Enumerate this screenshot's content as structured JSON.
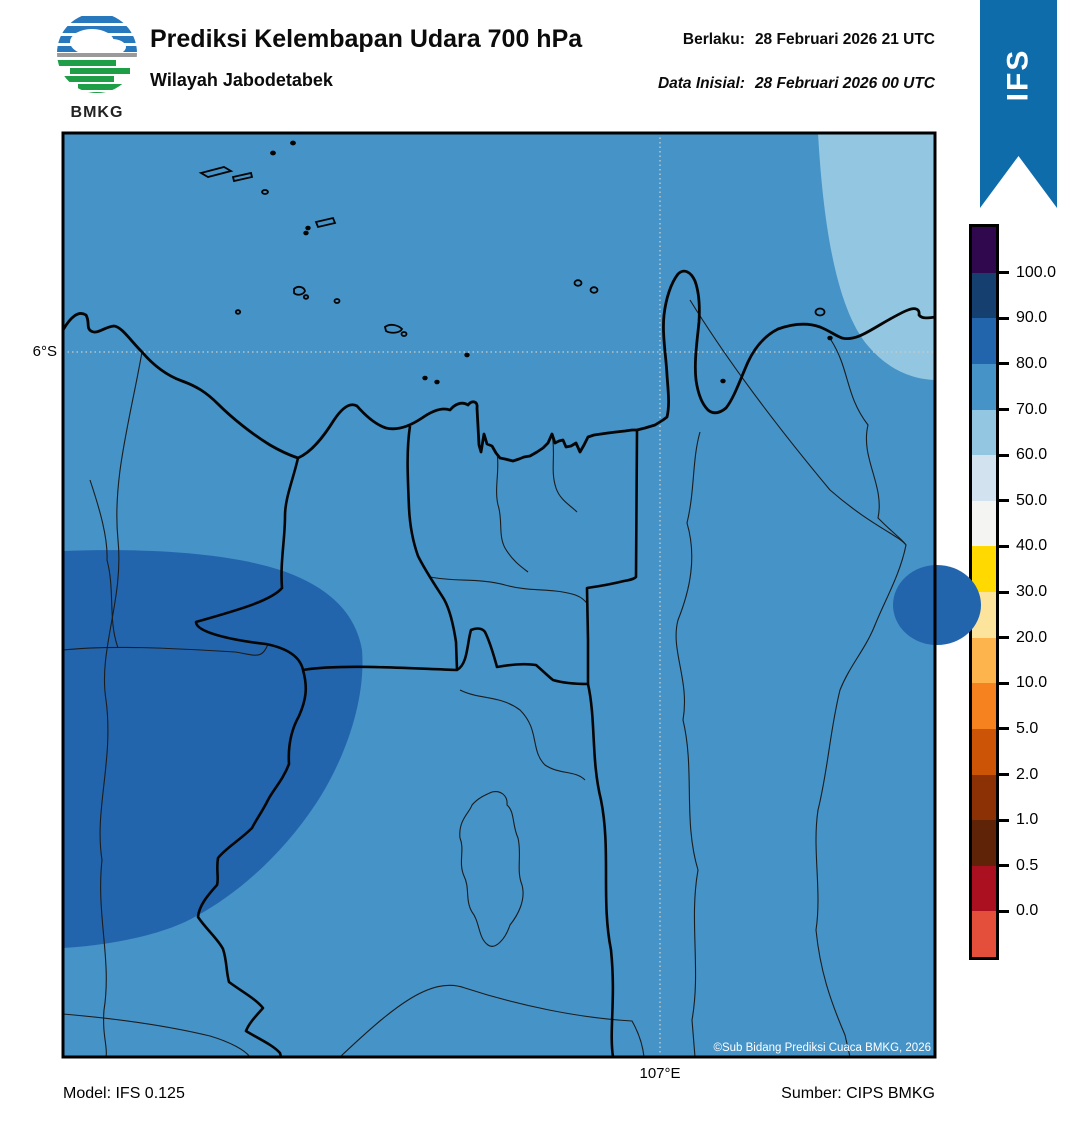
{
  "header": {
    "logo_text": "BMKG",
    "title": "Prediksi Kelembapan Udara 700 hPa",
    "subtitle": "Wilayah Jabodetabek",
    "valid_label": "Berlaku:",
    "valid_value": "28 Februari 2026 21 UTC",
    "init_label": "Data Inisial:",
    "init_value": "28 Februari 2026 00 UTC"
  },
  "ribbon": {
    "label": "IFS",
    "color": "#0f6cab"
  },
  "colorbar": {
    "labels_top_to_bottom": [
      "100.0",
      "90.0",
      "80.0",
      "70.0",
      "60.0",
      "50.0",
      "40.0",
      "30.0",
      "20.0",
      "10.0",
      "5.0",
      "2.0",
      "1.0",
      "0.5",
      "0.0"
    ],
    "colors_top_to_bottom": [
      "#30084d",
      "#153f6f",
      "#2265ad",
      "#4593c7",
      "#93c6e1",
      "#d3e2ef",
      "#f4f4f2",
      "#ffd900",
      "#fce49c",
      "#fdb44d",
      "#f5821f",
      "#cc5407",
      "#8c3106",
      "#5f2407",
      "#ab1020",
      "#e34f3b"
    ]
  },
  "map": {
    "lat_label": "6°S",
    "lon_label": "107°E",
    "copyright": "©Sub Bidang Prediksi Cuaca BMKG, 2026",
    "colors": {
      "background": "#4593c7",
      "zone_60_70": "#93c6e1",
      "zone_80_90": "#2265ad",
      "gridline": "#c9cec9",
      "boundary_thin": "#1c1c1c",
      "coast": "#050505"
    }
  },
  "footer": {
    "model": "Model: IFS 0.125",
    "source": "Sumber: CIPS BMKG"
  }
}
